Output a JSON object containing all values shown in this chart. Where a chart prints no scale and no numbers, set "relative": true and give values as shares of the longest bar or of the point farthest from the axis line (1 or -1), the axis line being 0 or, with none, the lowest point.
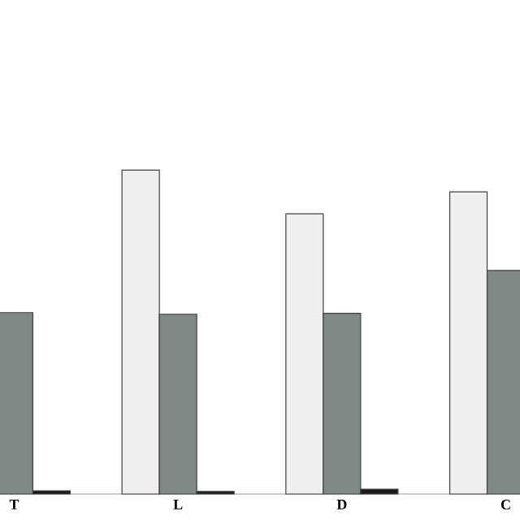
{
  "chart_data": {
    "type": "bar",
    "relative": true,
    "categories": [
      "T",
      "L",
      "D",
      "C"
    ],
    "series": [
      {
        "color": "#efefef",
        "values": [
          null,
          1,
          0.865,
          0.933
        ]
      },
      {
        "color": "#7f8a87",
        "values": [
          0.56,
          0.555,
          0.558,
          0.69
        ]
      },
      {
        "color": "#1a1a1a",
        "values": [
          0.01,
          0.008,
          0.015,
          null
        ]
      }
    ]
  }
}
